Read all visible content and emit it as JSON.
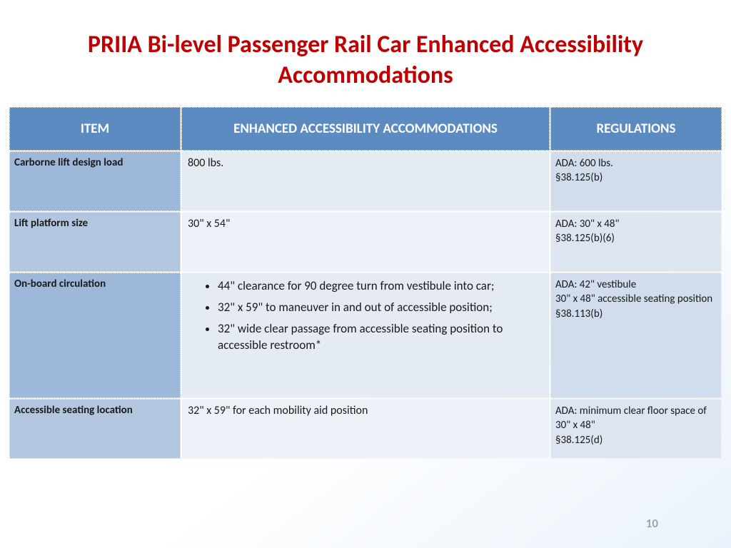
{
  "title": "PRIIA Bi-level Passenger Rail Car Enhanced Accessibility Accommodations",
  "headers": {
    "item": "ITEM",
    "acc": "ENHANCED ACCESSIBILITY ACCOMMODATIONS",
    "reg": "REGULATIONS"
  },
  "rows": {
    "r0": {
      "item": "Carborne lift design load",
      "acc_text": "800 lbs.",
      "reg": "ADA: 600 lbs.\n§38.125(b)"
    },
    "r1": {
      "item": "Lift platform size",
      "acc_text": "30\" x 54\"",
      "reg": "ADA: 30\" x 48\"\n§38.125(b)(6)"
    },
    "r2": {
      "item": "On-board circulation",
      "bullets": {
        "b0": "44\" clearance for 90 degree turn from vestibule into car;",
        "b1": "32\" x 59\" to maneuver in and out of accessible position;",
        "b2": "32\" wide clear passage from accessible seating position to accessible restroom*"
      },
      "reg": "ADA:  42\" vestibule\n30\" x 48\" accessible seating position\n§38.113(b)"
    },
    "r3": {
      "item": "Accessible seating location",
      "acc_text": "32\" x 59\" for each mobility aid position",
      "reg": "ADA: minimum  clear floor space of 30\" x 48\"\n§38.125(d)"
    }
  },
  "page_number": "10",
  "colors": {
    "title": "#c00000",
    "header_bg": "#5b8bc1",
    "header_fg": "#ffffff",
    "band_a_item": "#9db8d8",
    "band_a_acc": "#e4ebf3",
    "band_a_reg": "#d1dced",
    "band_b_item": "#b2c7df",
    "band_b_acc": "#eef2f8",
    "band_b_reg": "#dde5f1",
    "pagenum": "#9aa6b2"
  }
}
